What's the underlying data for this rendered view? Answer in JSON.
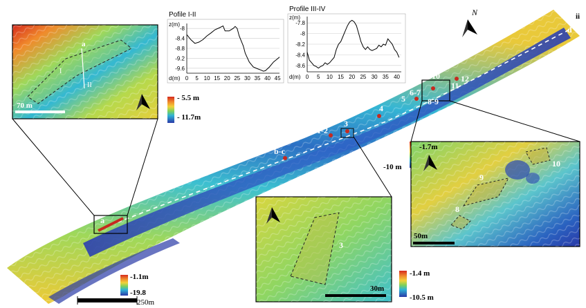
{
  "main_map": {
    "scale_label": "250m",
    "end_label": "ii",
    "end_marker": "d",
    "sites": [
      "a",
      "b-c",
      "1-2",
      "3",
      "4",
      "5",
      "6-7",
      "8-9",
      "10",
      "11",
      "12"
    ],
    "north_icon": "north-arrow-icon",
    "legend": {
      "max": "-1.1m",
      "min": "-19.8"
    }
  },
  "profiles": [
    {
      "title": "Pofile I-II",
      "ylabel": "z(m)",
      "xlabel": "d(m)",
      "yticks": [
        "-8",
        "-8.4",
        "-8.8",
        "-9.2",
        "-9.6"
      ],
      "xticks": [
        "0",
        "5",
        "10",
        "15",
        "20",
        "25",
        "30",
        "35",
        "40",
        "45"
      ],
      "xlim": [
        0,
        46
      ],
      "ylim": [
        -9.8,
        -7.8
      ],
      "points": [
        [
          0,
          -8.25
        ],
        [
          2,
          -8.45
        ],
        [
          4,
          -8.6
        ],
        [
          6,
          -8.55
        ],
        [
          8,
          -8.45
        ],
        [
          10,
          -8.3
        ],
        [
          12,
          -8.18
        ],
        [
          14,
          -8.05
        ],
        [
          16,
          -7.98
        ],
        [
          18,
          -7.9
        ],
        [
          19,
          -8.1
        ],
        [
          21,
          -8.1
        ],
        [
          23,
          -8.0
        ],
        [
          24,
          -7.92
        ],
        [
          25,
          -8.0
        ],
        [
          26,
          -8.3
        ],
        [
          28,
          -8.7
        ],
        [
          29,
          -9.0
        ],
        [
          31,
          -9.35
        ],
        [
          33,
          -9.55
        ],
        [
          35,
          -9.62
        ],
        [
          37,
          -9.68
        ],
        [
          38,
          -9.72
        ],
        [
          39,
          -9.7
        ],
        [
          41,
          -9.55
        ],
        [
          43,
          -9.35
        ],
        [
          45,
          -9.22
        ],
        [
          46,
          -9.15
        ]
      ]
    },
    {
      "title": "Profile III-IV",
      "ylabel": "z(m)",
      "xlabel": "d(m)",
      "yticks": [
        "-7.8",
        "-8",
        "-8.2",
        "-8.4",
        "-8.6"
      ],
      "xticks": [
        "0",
        "5",
        "10",
        "15",
        "20",
        "25",
        "30",
        "35",
        "40"
      ],
      "xlim": [
        0,
        42
      ],
      "ylim": [
        -8.72,
        -7.68
      ],
      "points": [
        [
          0,
          -8.35
        ],
        [
          1,
          -8.5
        ],
        [
          2,
          -8.55
        ],
        [
          3,
          -8.6
        ],
        [
          4,
          -8.62
        ],
        [
          5,
          -8.65
        ],
        [
          6,
          -8.62
        ],
        [
          7,
          -8.6
        ],
        [
          8,
          -8.55
        ],
        [
          9,
          -8.58
        ],
        [
          10,
          -8.55
        ],
        [
          11,
          -8.5
        ],
        [
          12,
          -8.45
        ],
        [
          13,
          -8.3
        ],
        [
          14,
          -8.2
        ],
        [
          15,
          -8.15
        ],
        [
          16,
          -8.05
        ],
        [
          17,
          -7.95
        ],
        [
          18,
          -7.85
        ],
        [
          19,
          -7.78
        ],
        [
          20,
          -7.75
        ],
        [
          21,
          -7.78
        ],
        [
          22,
          -7.85
        ],
        [
          23,
          -8.0
        ],
        [
          24,
          -8.15
        ],
        [
          25,
          -8.25
        ],
        [
          26,
          -8.3
        ],
        [
          27,
          -8.25
        ],
        [
          28,
          -8.3
        ],
        [
          29,
          -8.32
        ],
        [
          30,
          -8.3
        ],
        [
          31,
          -8.28
        ],
        [
          32,
          -8.22
        ],
        [
          33,
          -8.25
        ],
        [
          34,
          -8.2
        ],
        [
          35,
          -8.22
        ],
        [
          36,
          -8.1
        ],
        [
          37,
          -8.15
        ],
        [
          38,
          -8.2
        ],
        [
          39,
          -8.3
        ],
        [
          40,
          -8.35
        ],
        [
          41,
          -8.45
        ]
      ]
    }
  ],
  "inset_a": {
    "scale_label": "70 m",
    "labels": [
      "a",
      "I",
      "II"
    ],
    "legend": {
      "max": "- 5.5 m",
      "min": "- 11.7m"
    }
  },
  "legend_mid": {
    "max": "-1.7m",
    "min": "-10 m"
  },
  "inset_3": {
    "label": "3",
    "scale_label": "30m",
    "legend": {
      "max": "-1.4 m",
      "min": "-10.5 m"
    }
  },
  "inset_10": {
    "labels": [
      "8",
      "9",
      "10"
    ],
    "scale_label": "50m"
  },
  "colors": {
    "deep": "#2a39a8",
    "mid": "#2fb3d6",
    "green": "#7fd15a",
    "shallow": "#f2d23a",
    "orange": "#f08a2b",
    "red": "#d52a1e"
  }
}
